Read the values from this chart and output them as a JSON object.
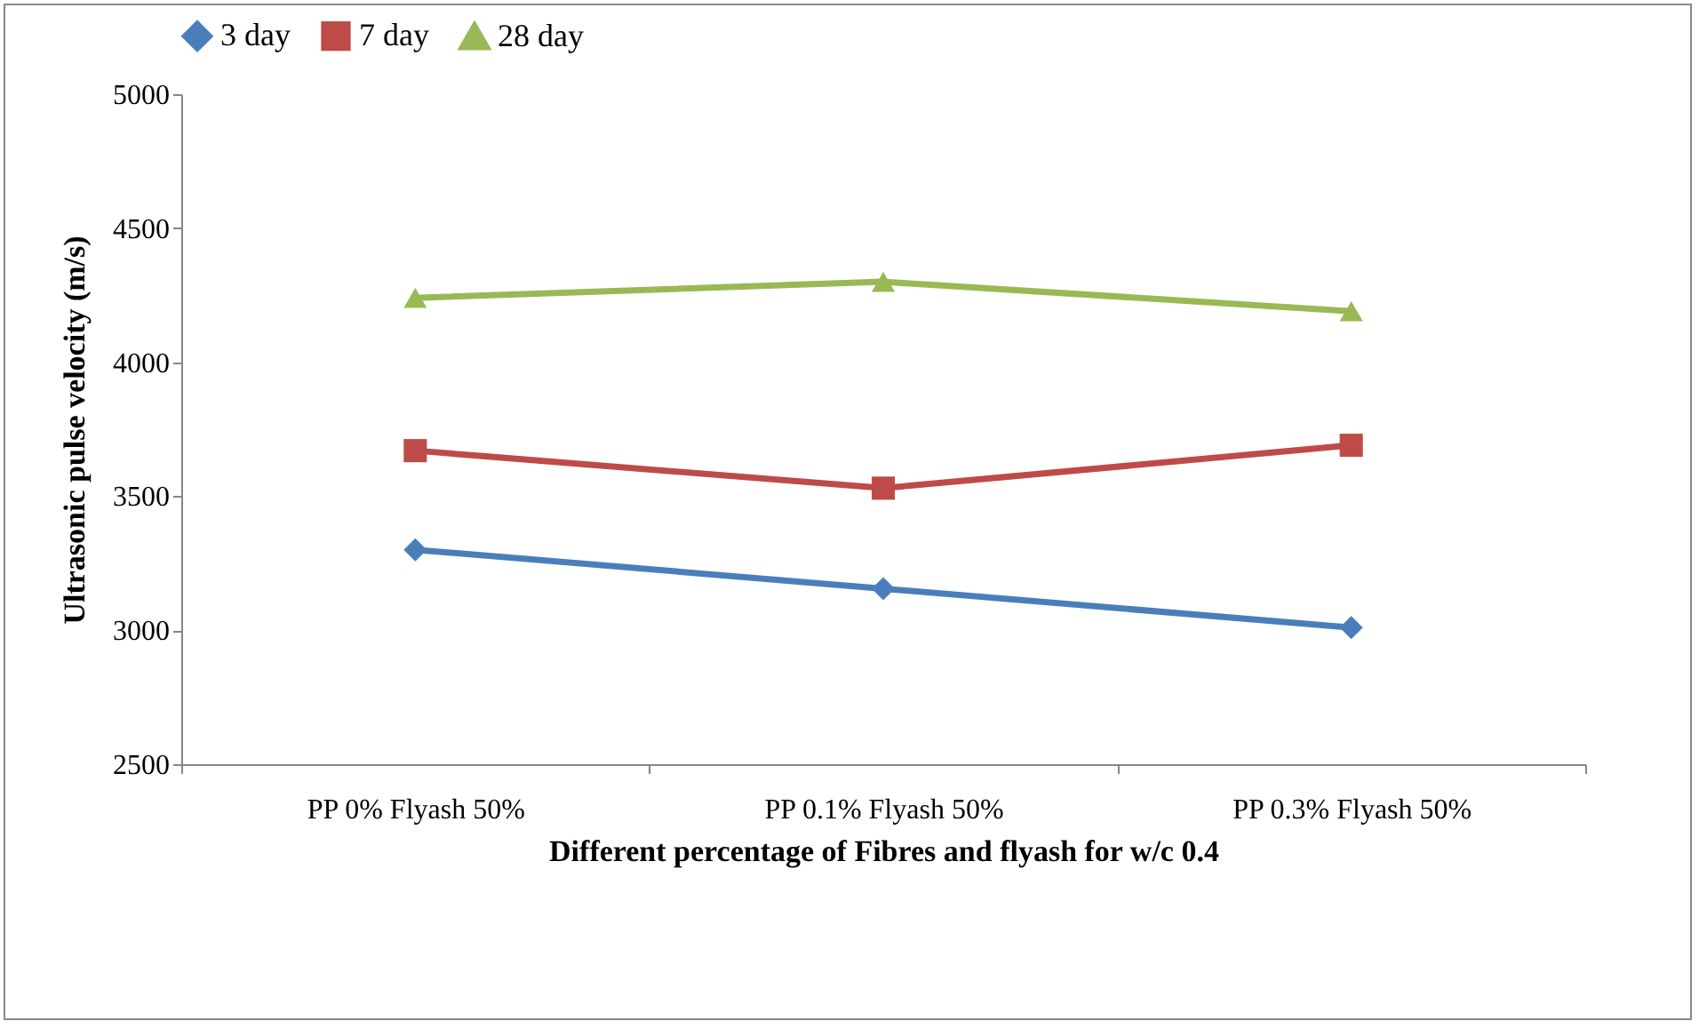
{
  "chart_data": {
    "type": "line",
    "xlabel": "Different percentage of Fibres and flyash for w/c 0.4",
    "ylabel": "Ultrasonic pulse velocity (m/s)",
    "categories": [
      "PP 0% Flyash 50%",
      "PP 0.1% Flyash 50%",
      "PP 0.3% Flyash 50%"
    ],
    "series": [
      {
        "name": "3 day",
        "color": "#4a7ebb",
        "marker": "diamond",
        "values": [
          3300,
          3155,
          3010
        ]
      },
      {
        "name": "7 day",
        "color": "#be4b48",
        "marker": "square",
        "values": [
          3670,
          3530,
          3690
        ]
      },
      {
        "name": "28 day",
        "color": "#98b954",
        "marker": "triangle",
        "values": [
          4240,
          4300,
          4190
        ]
      }
    ],
    "ylim": [
      2500,
      5000
    ],
    "yticks": [
      2500,
      3000,
      3500,
      4000,
      4500,
      5000
    ],
    "grid": false,
    "legend": "top"
  }
}
